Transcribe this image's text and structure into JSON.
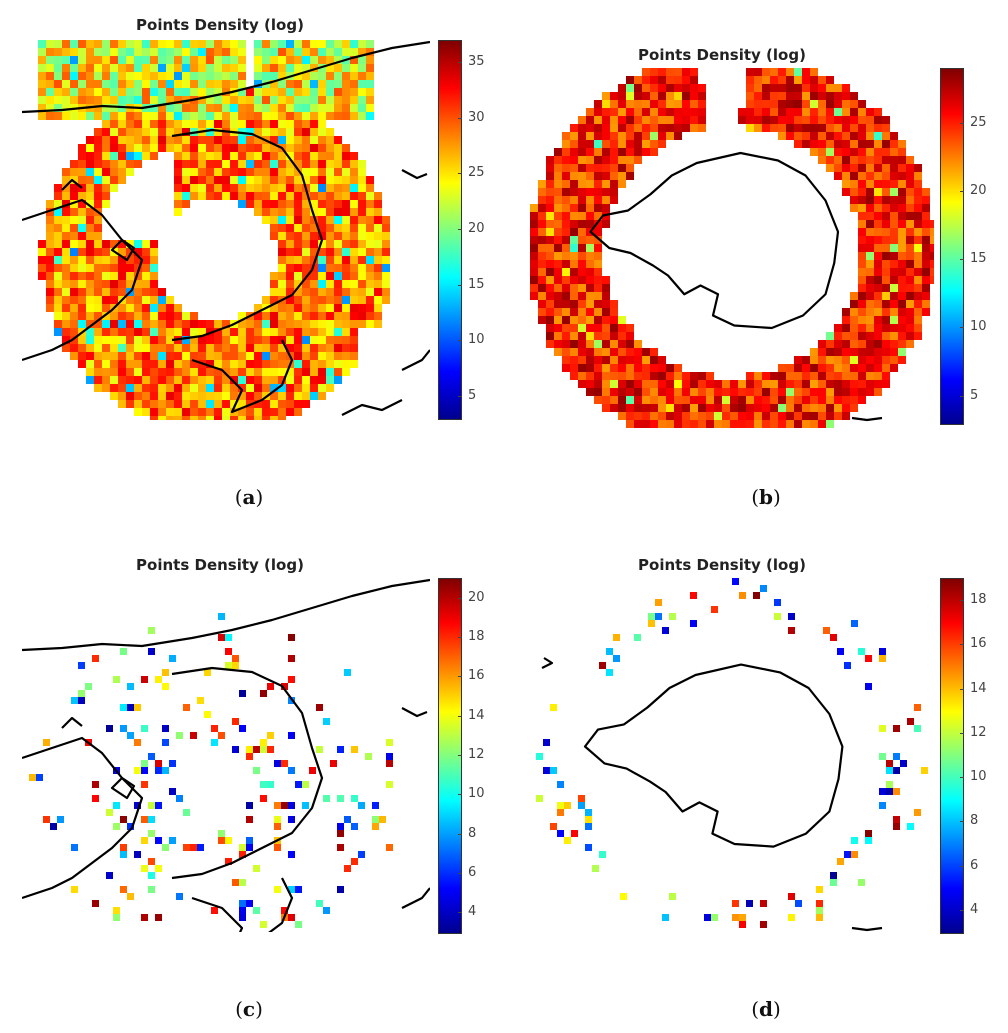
{
  "colorscale": [
    "#00008f",
    "#0000ff",
    "#0080ff",
    "#00ffff",
    "#80ff80",
    "#ffff00",
    "#ff8000",
    "#ff0000",
    "#800000"
  ],
  "coast_color": "#000000",
  "panels": [
    {
      "id": "a",
      "title": "Points Density (log)",
      "caption_open": "(",
      "caption_letter": "a",
      "caption_close": ")",
      "hemisphere": "north",
      "density": "high",
      "colorbar_ticks": [
        "35",
        "30",
        "25",
        "20",
        "15",
        "10",
        "5"
      ],
      "colorbar_range": [
        3,
        37
      ]
    },
    {
      "id": "b",
      "title": "Points Density (log)",
      "caption_open": "(",
      "caption_letter": "b",
      "caption_close": ")",
      "hemisphere": "south",
      "density": "high",
      "colorbar_ticks": [
        "25",
        "20",
        "15",
        "10",
        "5"
      ],
      "colorbar_range": [
        3,
        29
      ]
    },
    {
      "id": "c",
      "title": "Points Density (log)",
      "caption_open": "(",
      "caption_letter": "c",
      "caption_close": ")",
      "hemisphere": "north",
      "density": "sparse",
      "colorbar_ticks": [
        "20",
        "18",
        "16",
        "14",
        "12",
        "10",
        "8",
        "6",
        "4"
      ],
      "colorbar_range": [
        3,
        21
      ]
    },
    {
      "id": "d",
      "title": "Points Density (log)",
      "caption_open": "(",
      "caption_letter": "d",
      "caption_close": ")",
      "hemisphere": "south",
      "density": "sparse",
      "colorbar_ticks": [
        "18",
        "16",
        "14",
        "12",
        "10",
        "8",
        "6",
        "4"
      ],
      "colorbar_range": [
        3,
        19
      ]
    }
  ]
}
